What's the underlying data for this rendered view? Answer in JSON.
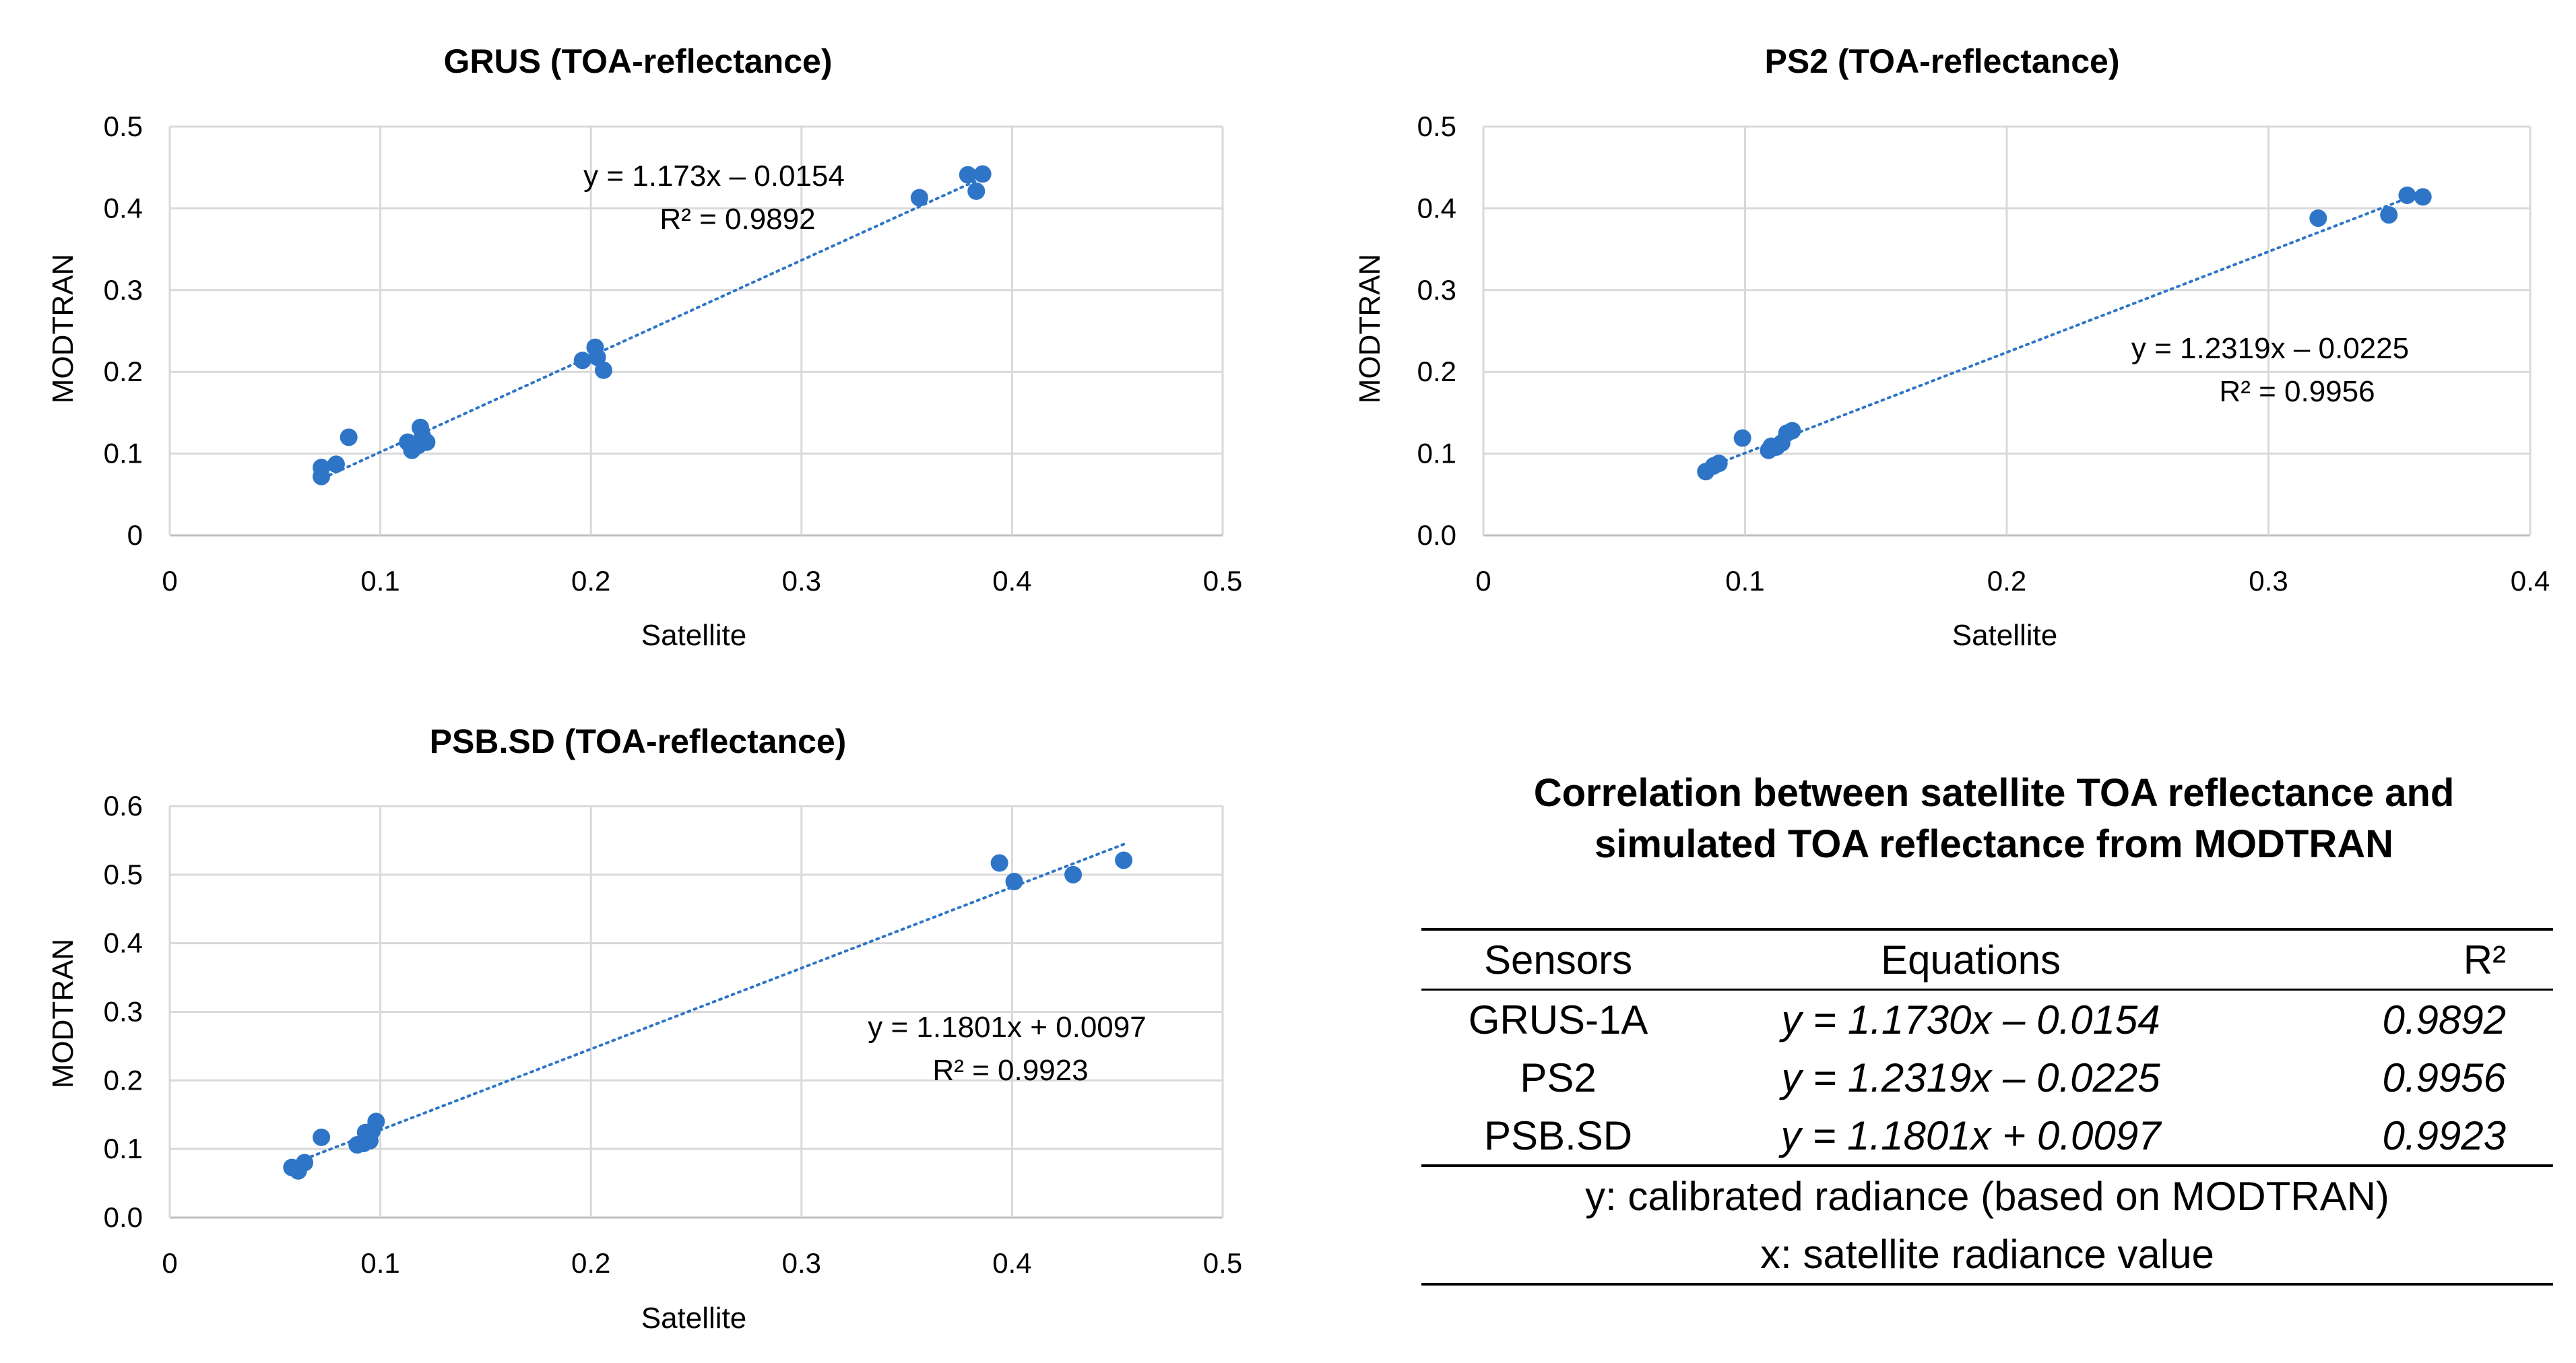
{
  "colors": {
    "marker": "#2E75C8",
    "trend": "#2E75C8",
    "grid": "#D9D9D9",
    "axis": "#BFBFBF"
  },
  "chart_data": [
    {
      "type": "scatter",
      "title": "GRUS (TOA-reflectance)",
      "xlabel": "Satellite",
      "ylabel": "MODTRAN",
      "xlim": [
        0,
        0.5
      ],
      "ylim": [
        0,
        0.5
      ],
      "xticks": [
        "0",
        "0.1",
        "0.2",
        "0.3",
        "0.4",
        "0.5"
      ],
      "yticks": [
        "0",
        "0.1",
        "0.2",
        "0.3",
        "0.4",
        "0.5"
      ],
      "grid": "vertical and horizontal",
      "points": [
        [
          0.072,
          0.083
        ],
        [
          0.072,
          0.072
        ],
        [
          0.079,
          0.087
        ],
        [
          0.085,
          0.12
        ],
        [
          0.113,
          0.114
        ],
        [
          0.115,
          0.104
        ],
        [
          0.118,
          0.11
        ],
        [
          0.119,
          0.132
        ],
        [
          0.12,
          0.121
        ],
        [
          0.122,
          0.114
        ],
        [
          0.196,
          0.214
        ],
        [
          0.202,
          0.23
        ],
        [
          0.203,
          0.218
        ],
        [
          0.206,
          0.202
        ],
        [
          0.356,
          0.413
        ],
        [
          0.379,
          0.441
        ],
        [
          0.383,
          0.421
        ],
        [
          0.386,
          0.442
        ]
      ],
      "trendline": {
        "slope": 1.173,
        "intercept": -0.0154,
        "x_range": [
          0.07,
          0.387
        ]
      },
      "equation_line1": "y = 1.173x – 0.0154",
      "equation_line2": "R² = 0.9892"
    },
    {
      "type": "scatter",
      "title": "PS2 (TOA-reflectance)",
      "xlabel": "Satellite",
      "ylabel": "MODTRAN",
      "xlim": [
        0,
        0.4
      ],
      "ylim": [
        0,
        0.5
      ],
      "xticks": [
        "0",
        "0.1",
        "0.2",
        "0.3",
        "0.4"
      ],
      "yticks": [
        "0.0",
        "0.1",
        "0.2",
        "0.3",
        "0.4",
        "0.5"
      ],
      "grid": "vertical and horizontal",
      "points": [
        [
          0.085,
          0.078
        ],
        [
          0.088,
          0.085
        ],
        [
          0.09,
          0.088
        ],
        [
          0.099,
          0.119
        ],
        [
          0.109,
          0.104
        ],
        [
          0.11,
          0.109
        ],
        [
          0.112,
          0.108
        ],
        [
          0.114,
          0.113
        ],
        [
          0.116,
          0.125
        ],
        [
          0.118,
          0.128
        ],
        [
          0.319,
          0.388
        ],
        [
          0.346,
          0.392
        ],
        [
          0.353,
          0.416
        ],
        [
          0.359,
          0.414
        ]
      ],
      "trendline": {
        "slope": 1.2319,
        "intercept": -0.0225,
        "x_range": [
          0.085,
          0.36
        ]
      },
      "equation_line1": "y = 1.2319x – 0.0225",
      "equation_line2": "R² = 0.9956"
    },
    {
      "type": "scatter",
      "title": "PSB.SD (TOA-reflectance)",
      "xlabel": "Satellite",
      "ylabel": "MODTRAN",
      "xlim": [
        0,
        0.5
      ],
      "ylim": [
        0,
        0.6
      ],
      "xticks": [
        "0",
        "0.1",
        "0.2",
        "0.3",
        "0.4",
        "0.5"
      ],
      "yticks": [
        "0.0",
        "0.1",
        "0.2",
        "0.3",
        "0.4",
        "0.5",
        "0.6"
      ],
      "grid": "vertical and horizontal",
      "points": [
        [
          0.058,
          0.073
        ],
        [
          0.061,
          0.068
        ],
        [
          0.064,
          0.08
        ],
        [
          0.072,
          0.117
        ],
        [
          0.089,
          0.106
        ],
        [
          0.092,
          0.108
        ],
        [
          0.093,
          0.124
        ],
        [
          0.095,
          0.112
        ],
        [
          0.096,
          0.126
        ],
        [
          0.098,
          0.14
        ],
        [
          0.394,
          0.517
        ],
        [
          0.401,
          0.49
        ],
        [
          0.429,
          0.5
        ],
        [
          0.453,
          0.521
        ]
      ],
      "trendline": {
        "slope": 1.1801,
        "intercept": 0.0097,
        "x_range": [
          0.058,
          0.455
        ]
      },
      "equation_line1": "y = 1.1801x + 0.0097",
      "equation_line2": "R² = 0.9923"
    }
  ],
  "summary": {
    "title_line1": "Correlation between satellite TOA reflectance and",
    "title_line2": "simulated TOA reflectance from MODTRAN",
    "headers": {
      "sensors": "Sensors",
      "equations": "Equations",
      "r2": "R²"
    },
    "rows": [
      {
        "sensor": "GRUS-1A",
        "equation": "y = 1.1730x – 0.0154",
        "r2": "0.9892"
      },
      {
        "sensor": "PS2",
        "equation": "y = 1.2319x – 0.0225",
        "r2": "0.9956"
      },
      {
        "sensor": "PSB.SD",
        "equation": "y = 1.1801x + 0.0097",
        "r2": "0.9923"
      }
    ],
    "note_y": "y: calibrated radiance (based on MODTRAN)",
    "note_x": "x: satellite radiance value"
  }
}
